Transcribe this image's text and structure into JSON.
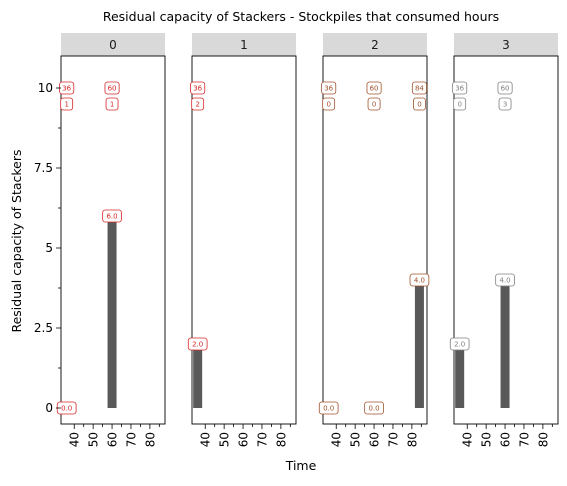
{
  "chart_data": {
    "type": "bar",
    "title": "Residual capacity of Stackers - Stockpiles that consumed hours",
    "xlabel": "Time",
    "ylabel": "Residual capacity of Stackers",
    "xlim": [
      33,
      88
    ],
    "ylim": [
      -0.5,
      11
    ],
    "x_ticks": [
      40,
      45,
      50,
      55,
      60,
      65,
      70,
      75,
      80,
      85
    ],
    "x_tick_labels": [
      "40",
      "50",
      "60",
      "70",
      "80"
    ],
    "x_tick_label_values": [
      40,
      50,
      60,
      70,
      80
    ],
    "y_ticks": [
      0,
      1.25,
      2.5,
      3.75,
      5,
      6.25,
      7.5,
      8.75,
      10
    ],
    "y_tick_labels": [
      "0",
      "2.5",
      "5",
      "7.5",
      "10"
    ],
    "y_tick_label_values": [
      0,
      2.5,
      5,
      7.5,
      10
    ],
    "bar_color": "#595959",
    "strip_color": "#d9d9d9",
    "panels": [
      {
        "facet": "0",
        "label_color": "#d62728",
        "bars": [
          {
            "x": 60,
            "value": 6.0
          }
        ],
        "value_labels": [
          {
            "x": 36,
            "y": 0,
            "text": "0.0"
          },
          {
            "x": 60,
            "y": 6.0,
            "text": "6.0"
          }
        ],
        "top_labels": [
          {
            "x": 36,
            "text": "36"
          },
          {
            "x": 60,
            "text": "60"
          }
        ],
        "count_labels": [
          {
            "x": 36,
            "text": "1"
          },
          {
            "x": 60,
            "text": "1"
          }
        ]
      },
      {
        "facet": "1",
        "label_color": "#d62728",
        "bars": [
          {
            "x": 36,
            "value": 2.0
          }
        ],
        "value_labels": [
          {
            "x": 36,
            "y": 2.0,
            "text": "2.0"
          }
        ],
        "top_labels": [
          {
            "x": 36,
            "text": "36"
          }
        ],
        "count_labels": [
          {
            "x": 36,
            "text": "2"
          }
        ]
      },
      {
        "facet": "2",
        "label_color": "#a0522d",
        "bars": [
          {
            "x": 84,
            "value": 4.0
          }
        ],
        "value_labels": [
          {
            "x": 36,
            "y": 0,
            "text": "0.0"
          },
          {
            "x": 60,
            "y": 0,
            "text": "0.0"
          },
          {
            "x": 84,
            "y": 4.0,
            "text": "4.0"
          }
        ],
        "top_labels": [
          {
            "x": 36,
            "text": "36"
          },
          {
            "x": 60,
            "text": "60"
          },
          {
            "x": 84,
            "text": "84"
          }
        ],
        "count_labels": [
          {
            "x": 36,
            "text": "0"
          },
          {
            "x": 60,
            "text": "0"
          },
          {
            "x": 84,
            "text": "0"
          }
        ]
      },
      {
        "facet": "3",
        "label_color": "#808080",
        "bars": [
          {
            "x": 36,
            "value": 2.0
          },
          {
            "x": 60,
            "value": 4.0
          }
        ],
        "value_labels": [
          {
            "x": 36,
            "y": 2.0,
            "text": "2.0"
          },
          {
            "x": 60,
            "y": 4.0,
            "text": "4.0"
          }
        ],
        "top_labels": [
          {
            "x": 36,
            "text": "36"
          },
          {
            "x": 60,
            "text": "60"
          }
        ],
        "count_labels": [
          {
            "x": 36,
            "text": "0"
          },
          {
            "x": 60,
            "text": "3"
          }
        ]
      }
    ]
  }
}
